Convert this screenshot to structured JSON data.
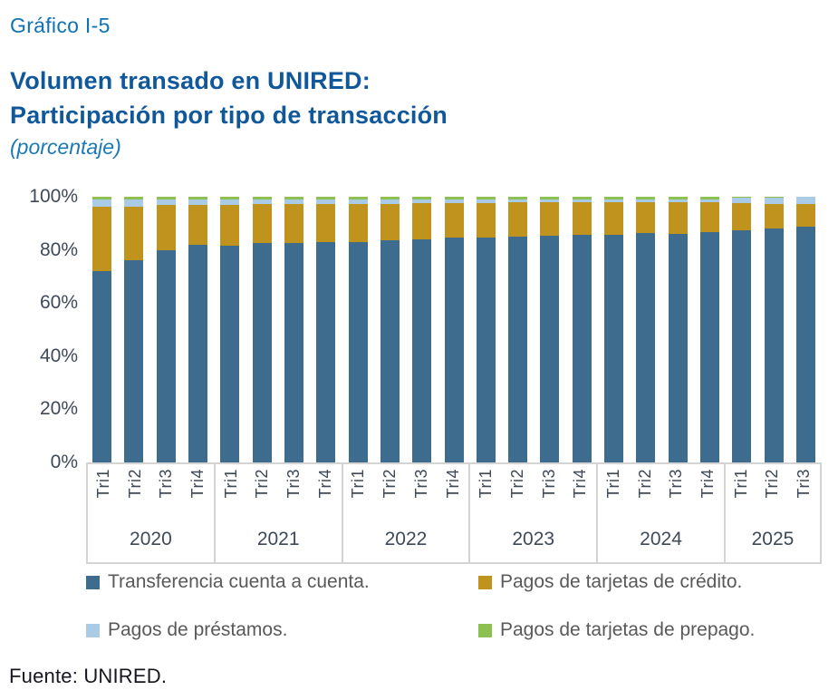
{
  "header": {
    "kicker": "Gráfico I-5",
    "title_lines": [
      "Volumen transado en UNIRED:",
      "Participación por tipo de transacción"
    ],
    "subtitle": "(porcentaje)"
  },
  "colors": {
    "kicker_blue": "#0f72b4",
    "title_blue": "#11589b",
    "subtitle_blue": "#1b79b6",
    "axis_text": "#3f4a58",
    "axis_line": "#d4d4d4",
    "legend_text": "#595959"
  },
  "chart_data": {
    "type": "bar",
    "stacked": true,
    "unit": "percent",
    "ylim": [
      0,
      100
    ],
    "grid": false,
    "legend_position": "bottom",
    "y_ticks": [
      "100%",
      "80%",
      "60%",
      "40%",
      "20%",
      "0%"
    ],
    "categories": [
      {
        "year": "2020",
        "quarters": [
          "Tri1",
          "Tri2",
          "Tri3",
          "Tri4"
        ]
      },
      {
        "year": "2021",
        "quarters": [
          "Tri1",
          "Tri2",
          "Tri3",
          "Tri4"
        ]
      },
      {
        "year": "2022",
        "quarters": [
          "Tri1",
          "Tri2",
          "Tri3",
          "Tri4"
        ]
      },
      {
        "year": "2023",
        "quarters": [
          "Tri1",
          "Tri2",
          "Tri3",
          "Tri4"
        ]
      },
      {
        "year": "2024",
        "quarters": [
          "Tri1",
          "Tri2",
          "Tri3",
          "Tri4"
        ]
      },
      {
        "year": "2025",
        "quarters": [
          "Tri1",
          "Tri2",
          "Tri3"
        ]
      }
    ],
    "series": [
      {
        "key": "cuenta",
        "name": "Transferencia cuenta a cuenta.",
        "color": "#3E6C8F",
        "values": [
          72.0,
          76.0,
          80.0,
          82.0,
          81.5,
          82.5,
          82.5,
          83.0,
          83.0,
          83.5,
          84.0,
          84.5,
          84.6,
          85.0,
          85.3,
          85.5,
          85.8,
          86.2,
          85.9,
          86.6,
          87.3,
          88.0,
          88.8
        ]
      },
      {
        "key": "credito",
        "name": "Pagos de tarjetas de crédito.",
        "color": "#C0931F",
        "values": [
          24.2,
          20.2,
          16.9,
          15.0,
          15.5,
          14.6,
          14.7,
          14.2,
          14.3,
          13.9,
          13.5,
          13.1,
          13.1,
          12.8,
          12.6,
          12.4,
          12.2,
          11.9,
          12.1,
          11.5,
          10.3,
          9.3,
          8.3
        ]
      },
      {
        "key": "prestamos",
        "name": "Pagos de préstamos.",
        "color": "#A9CBE5",
        "values": [
          2.8,
          2.8,
          2.1,
          2.0,
          2.0,
          1.9,
          1.8,
          1.8,
          1.7,
          1.6,
          1.5,
          1.5,
          1.4,
          1.3,
          1.2,
          1.2,
          1.1,
          1.0,
          1.1,
          1.0,
          2.2,
          2.5,
          2.8
        ]
      },
      {
        "key": "prepago",
        "name": "Pagos de tarjetas de prepago.",
        "color": "#8CC152",
        "values": [
          1.0,
          1.0,
          1.0,
          1.0,
          1.0,
          1.0,
          1.0,
          1.0,
          1.0,
          1.0,
          1.0,
          0.9,
          0.9,
          0.9,
          0.9,
          0.9,
          0.9,
          0.9,
          0.9,
          0.9,
          0.2,
          0.2,
          0.1
        ]
      }
    ]
  },
  "footer": {
    "source": "Fuente: UNIRED."
  }
}
